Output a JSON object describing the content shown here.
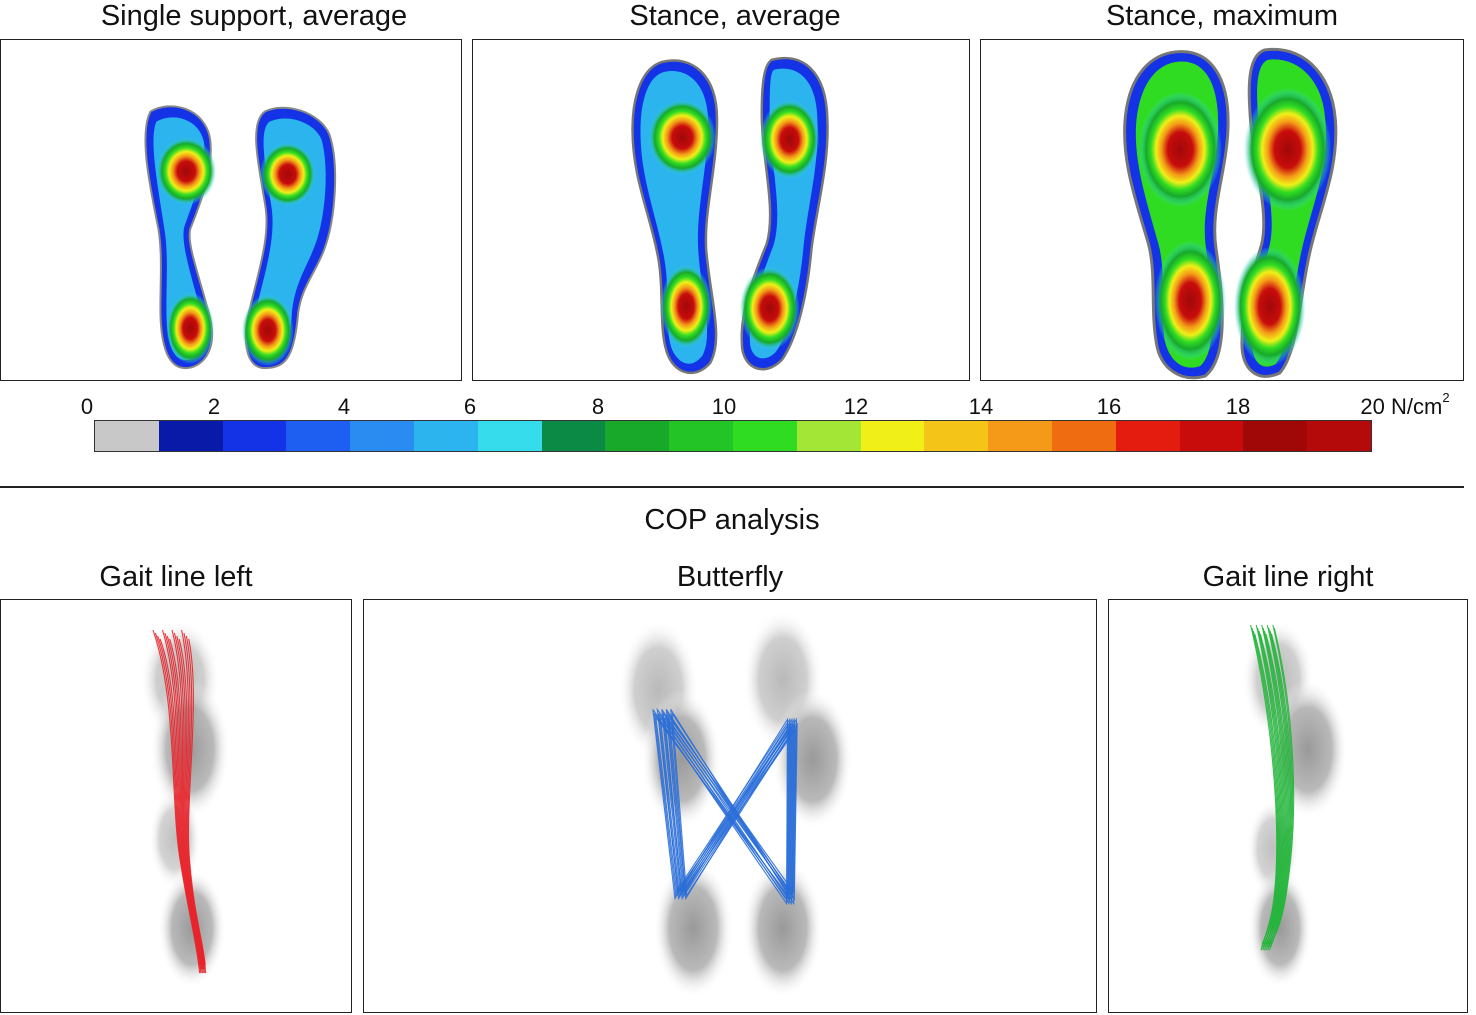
{
  "pressure_maps": {
    "titles": [
      "Single support, average",
      "Stance, average",
      "Stance, maximum"
    ]
  },
  "colorbar": {
    "ticks": [
      "0",
      "2",
      "4",
      "6",
      "8",
      "10",
      "12",
      "14",
      "16",
      "18",
      "20"
    ],
    "unit": "N/cm",
    "unit_superscript": "2",
    "colors": [
      "#c8c8c8",
      "#0a1aa8",
      "#1432e6",
      "#1e5ef0",
      "#2a8cf0",
      "#2cb4ee",
      "#36dcec",
      "#0a8a44",
      "#18a82a",
      "#22c426",
      "#30dc22",
      "#a4e636",
      "#f0f018",
      "#f4c418",
      "#f49a18",
      "#f06c10",
      "#e41c10",
      "#c80c0c",
      "#a00808",
      "#b40a0a"
    ]
  },
  "cop": {
    "heading": "COP analysis",
    "titles": [
      "Gait line left",
      "Butterfly",
      "Gait line right"
    ],
    "line_colors": [
      "#e8232b",
      "#2a6ed8",
      "#22b53a"
    ]
  }
}
